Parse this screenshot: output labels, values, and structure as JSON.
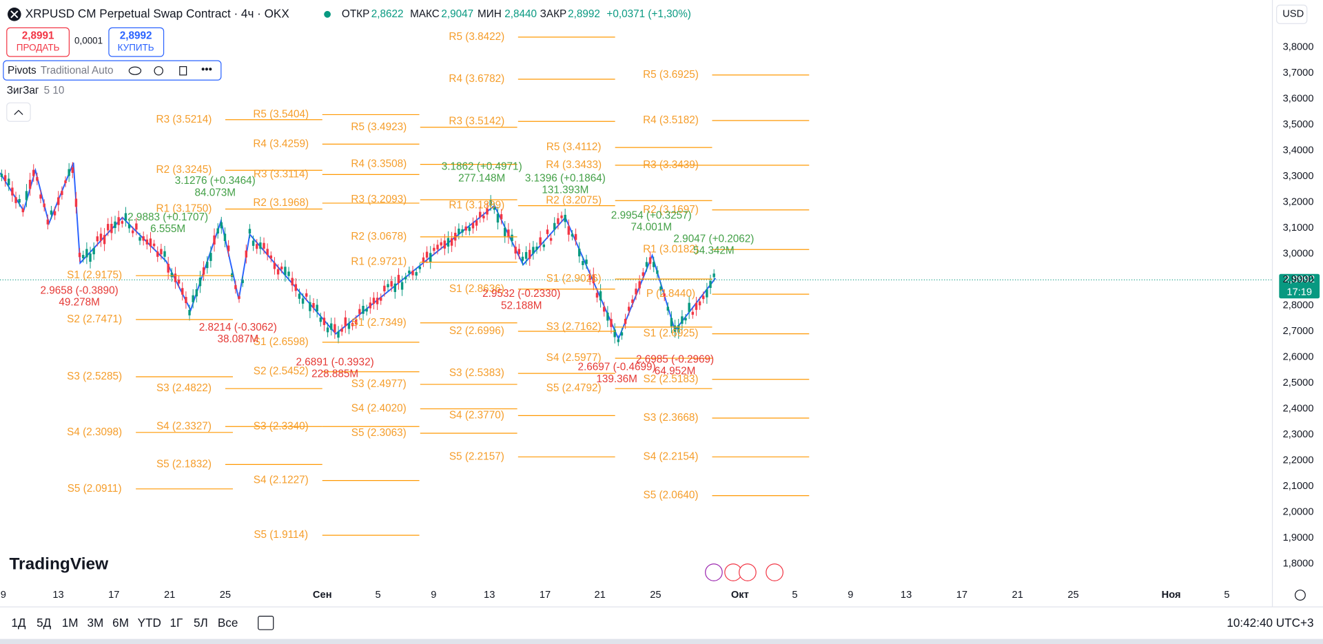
{
  "header": {
    "symbol": "XRPUSD CM Perpetual Swap Contract · 4ч · OKX",
    "open_label": "ОТКР",
    "open": "2,8622",
    "high_label": "МАКС",
    "high": "2,9047",
    "low_label": "МИН",
    "low": "2,8440",
    "close_label": "ЗАКР",
    "close": "2,8992",
    "change": "+0,0371 (+1,30%)",
    "currency": "USD"
  },
  "trade": {
    "sell_price": "2,8991",
    "sell_label": "ПРОДАТЬ",
    "spread": "0,0001",
    "buy_price": "2,8992",
    "buy_label": "КУПИТЬ"
  },
  "indicators": [
    {
      "name": "Pivots",
      "params": "Traditional Auto"
    },
    {
      "name": "ЗигЗаг",
      "params": "5 10"
    }
  ],
  "price_axis": [
    "3,8000",
    "3,7000",
    "3,6000",
    "3,5000",
    "3,4000",
    "3,3000",
    "3,2000",
    "3,1000",
    "3,0000",
    "2,9000",
    "2,8000",
    "2,7000",
    "2,6000",
    "2,5000",
    "2,4000",
    "2,3000",
    "2,2000",
    "2,1000",
    "2,0000",
    "1,9000",
    "1,8000"
  ],
  "current_price": "2,8992",
  "countdown": "17:19",
  "time_axis": [
    "9",
    "13",
    "17",
    "21",
    "25",
    "Сен",
    "5",
    "9",
    "13",
    "17",
    "21",
    "25",
    "Окт",
    "5",
    "9",
    "13",
    "17",
    "21",
    "25",
    "Ноя",
    "5"
  ],
  "pivots": [
    {
      "labels": [
        "S1 (2.9175)",
        "S2 (2.7471)",
        "S3 (2.5285)",
        "S4 (2.3098)",
        "S5 (2.0911)"
      ]
    },
    {
      "labels": [
        "R3 (3.5214)",
        "R2 (3.3245)",
        "R1 (3.1750)",
        "S3 (2.4822)",
        "S4 (2.3327)",
        "S5 (2.1832)"
      ]
    },
    {
      "labels": [
        "R5 (3.5404)",
        "R4 (3.4259)",
        "R3 (3.3114)",
        "R2 (3.1968)",
        "S1 (2.6598)",
        "S2 (2.5452)",
        "S3 (2.3340)",
        "S4 (2.1227)",
        "S5 (1.9114)"
      ]
    },
    {
      "labels": [
        "R5 (3.4923)",
        "R4 (3.3508)",
        "R3 (3.2093)",
        "R2 (3.0678)",
        "R1 (2.9721)",
        "S1 (2.7349)",
        "S3 (2.4977)",
        "S4 (2.4020)",
        "S5 (2.3063)"
      ]
    },
    {
      "labels": [
        "R5 (3.8422)",
        "R4 (3.6782)",
        "R3 (3.5142)",
        "R1 (3.1889)",
        "S1 (2.8636)",
        "S2 (2.6996)",
        "S3 (2.5383)",
        "S4 (2.3770)",
        "S5 (2.2157)"
      ]
    },
    {
      "labels": [
        "R5 (3.4112)",
        "R4 (3.3433)",
        "R2 (3.2075)",
        "S1 (2.9026)",
        "S3 (2.7162)",
        "S4 (2.5977)",
        "S5 (2.4792)"
      ]
    },
    {
      "labels": [
        "R5 (3.6925)",
        "R4 (3.5182)",
        "R3 (3.3439)",
        "R2 (3.1697)",
        "R1 (3.0182)",
        "P (2.8440)",
        "S1 (2.6925)",
        "S2 (2.5183)",
        "S3 (2.3668)",
        "S4 (2.2154)",
        "S5 (2.0640)"
      ]
    }
  ],
  "zigzag_highs": [
    {
      "text": "3.1276 (+0.3464)",
      "volume": "84.073M"
    },
    {
      "text": "2.9883 (+0.1707)",
      "volume": "6.555M"
    },
    {
      "text": "3.1862 (+0.4971)",
      "volume": "277.148M"
    },
    {
      "text": "3.1396 (+0.1864)",
      "volume": "131.393M"
    },
    {
      "text": "2.9954 (+0.3257)",
      "volume": "74.001M"
    },
    {
      "text": "2.9047 (+0.2062)",
      "volume": "54.342M"
    }
  ],
  "zigzag_lows": [
    {
      "text": "2.9658 (-0.3890)",
      "volume": "49.278M"
    },
    {
      "text": "2.8214 (-0.3062)",
      "volume": "38.087M"
    },
    {
      "text": "2.6891 (-0.3932)",
      "volume": "228.885M"
    },
    {
      "text": "2.9532 (-0.2330)",
      "volume": "52.188M"
    },
    {
      "text": "2.6697 (-0.4699)",
      "volume": "139.36M"
    },
    {
      "text": "2.6985 (-0.2969)",
      "volume": "64.952M"
    }
  ],
  "logo": "TradingView",
  "ranges": [
    "1Д",
    "5Д",
    "1М",
    "3М",
    "6М",
    "YTD",
    "1Г",
    "5Л",
    "Все"
  ],
  "clock": "10:42:40 UTC+3"
}
